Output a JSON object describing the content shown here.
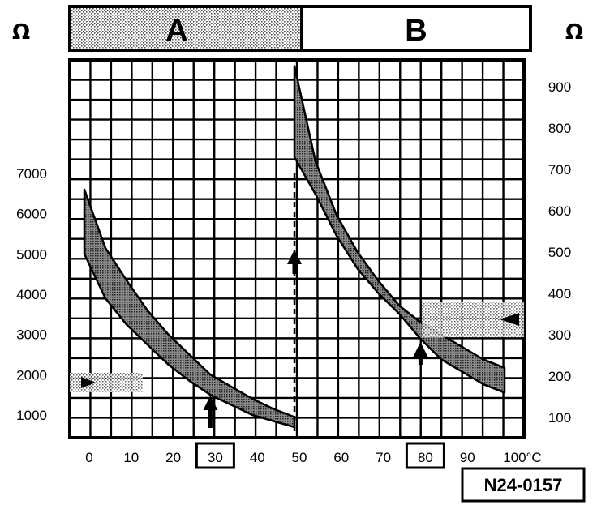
{
  "chart_data": {
    "type": "area",
    "title": "",
    "reference_code": "N24-0157",
    "panels": [
      {
        "name": "A",
        "y_axis_side": "left",
        "ylabel": "Ω",
        "y_ticks": [
          1000,
          2000,
          3000,
          4000,
          5000,
          6000,
          7000
        ],
        "x_range": [
          0,
          50
        ],
        "band": {
          "x": [
            0,
            5,
            10,
            15,
            20,
            25,
            30,
            35,
            40,
            45,
            50
          ],
          "upper": [
            6600,
            5150,
            4350,
            3600,
            3000,
            2500,
            2000,
            1700,
            1400,
            1150,
            950
          ],
          "lower": [
            5000,
            3900,
            3250,
            2750,
            2250,
            1850,
            1500,
            1250,
            1000,
            850,
            700
          ]
        },
        "marked_temperature": 30
      },
      {
        "name": "B",
        "y_axis_side": "right",
        "ylabel": "Ω",
        "y_ticks": [
          100,
          200,
          300,
          400,
          500,
          600,
          700,
          800,
          900
        ],
        "x_range": [
          50,
          100
        ],
        "band": {
          "x": [
            50,
            55,
            60,
            65,
            70,
            75,
            80,
            85,
            90,
            95,
            100
          ],
          "upper": [
            950,
            720,
            590,
            500,
            430,
            370,
            330,
            300,
            270,
            240,
            220
          ],
          "lower": [
            730,
            640,
            540,
            460,
            400,
            350,
            290,
            240,
            210,
            180,
            160
          ]
        },
        "marked_temperature": 80
      }
    ],
    "x_ticks": [
      {
        "value": 0,
        "label": "0"
      },
      {
        "value": 10,
        "label": "10"
      },
      {
        "value": 20,
        "label": "20"
      },
      {
        "value": 30,
        "label": "30",
        "boxed": true
      },
      {
        "value": 40,
        "label": "40"
      },
      {
        "value": 50,
        "label": "50"
      },
      {
        "value": 60,
        "label": "60"
      },
      {
        "value": 70,
        "label": "70"
      },
      {
        "value": 80,
        "label": "80",
        "boxed": true
      },
      {
        "value": 90,
        "label": "90"
      },
      {
        "value": 100,
        "label": "100°C"
      }
    ],
    "grid": true
  }
}
